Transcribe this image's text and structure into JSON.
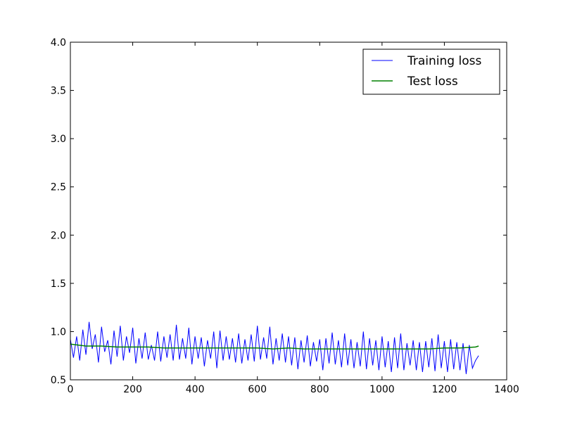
{
  "chart_data": {
    "type": "line",
    "xlim": [
      0,
      1400
    ],
    "ylim": [
      0.5,
      4.0
    ],
    "x_ticks": [
      0,
      200,
      400,
      600,
      800,
      1000,
      1200,
      1400
    ],
    "y_ticks": [
      0.5,
      1.0,
      1.5,
      2.0,
      2.5,
      3.0,
      3.5,
      4.0
    ],
    "x_tick_labels": [
      "0",
      "200",
      "400",
      "600",
      "800",
      "1000",
      "1200",
      "1400"
    ],
    "y_tick_labels": [
      "0.5",
      "1.0",
      "1.5",
      "2.0",
      "2.5",
      "3.0",
      "3.5",
      "4.0"
    ],
    "legend_position": "top-right",
    "legend_labels": [
      "Training loss",
      "Test loss"
    ],
    "series": [
      {
        "name": "Training loss",
        "color": "#0000ff",
        "x": [
          0,
          10,
          20,
          30,
          40,
          50,
          60,
          70,
          80,
          90,
          100,
          110,
          120,
          130,
          140,
          150,
          160,
          170,
          180,
          190,
          200,
          210,
          220,
          230,
          240,
          250,
          260,
          270,
          280,
          290,
          300,
          310,
          320,
          330,
          340,
          350,
          360,
          370,
          380,
          390,
          400,
          410,
          420,
          430,
          440,
          450,
          460,
          470,
          480,
          490,
          500,
          510,
          520,
          530,
          540,
          550,
          560,
          570,
          580,
          590,
          600,
          610,
          620,
          630,
          640,
          650,
          660,
          670,
          680,
          690,
          700,
          710,
          720,
          730,
          740,
          750,
          760,
          770,
          780,
          790,
          800,
          810,
          820,
          830,
          840,
          850,
          860,
          870,
          880,
          890,
          900,
          910,
          920,
          930,
          940,
          950,
          960,
          970,
          980,
          990,
          1000,
          1010,
          1020,
          1030,
          1040,
          1050,
          1060,
          1070,
          1080,
          1090,
          1100,
          1110,
          1120,
          1130,
          1140,
          1150,
          1160,
          1170,
          1180,
          1190,
          1200,
          1210,
          1220,
          1230,
          1240,
          1250,
          1260,
          1270,
          1280,
          1290,
          1300,
          1310
        ],
        "y": [
          0.92,
          0.73,
          0.95,
          0.7,
          1.02,
          0.76,
          1.1,
          0.82,
          0.97,
          0.68,
          1.05,
          0.79,
          0.91,
          0.66,
          1.01,
          0.74,
          1.06,
          0.7,
          0.95,
          0.78,
          1.04,
          0.67,
          0.93,
          0.72,
          0.99,
          0.71,
          0.86,
          0.7,
          1.0,
          0.69,
          0.95,
          0.73,
          0.97,
          0.7,
          1.07,
          0.71,
          0.93,
          0.72,
          1.04,
          0.66,
          0.95,
          0.72,
          0.94,
          0.64,
          0.91,
          0.72,
          1.0,
          0.62,
          1.01,
          0.7,
          0.95,
          0.71,
          0.93,
          0.68,
          0.98,
          0.67,
          0.92,
          0.7,
          0.97,
          0.69,
          1.06,
          0.71,
          0.94,
          0.72,
          1.05,
          0.66,
          0.93,
          0.7,
          0.98,
          0.68,
          0.95,
          0.65,
          0.94,
          0.61,
          0.91,
          0.68,
          0.96,
          0.64,
          0.89,
          0.69,
          0.92,
          0.6,
          0.93,
          0.67,
          0.99,
          0.66,
          0.91,
          0.63,
          0.98,
          0.65,
          0.92,
          0.62,
          0.89,
          0.64,
          1.0,
          0.61,
          0.93,
          0.65,
          0.91,
          0.6,
          0.95,
          0.63,
          0.9,
          0.58,
          0.94,
          0.62,
          0.98,
          0.6,
          0.88,
          0.65,
          0.91,
          0.6,
          0.89,
          0.58,
          0.9,
          0.63,
          0.93,
          0.59,
          0.97,
          0.62,
          0.9,
          0.58,
          0.92,
          0.61,
          0.89,
          0.6,
          0.88,
          0.56,
          0.86,
          0.62,
          0.7,
          0.75
        ],
        "note_noise": "high-frequency fluctuation around ~0.8"
      },
      {
        "name": "Test loss",
        "color": "#008000",
        "x": [
          0,
          50,
          100,
          150,
          200,
          250,
          300,
          350,
          400,
          450,
          500,
          550,
          600,
          650,
          700,
          750,
          800,
          850,
          900,
          950,
          1000,
          1050,
          1100,
          1150,
          1200,
          1250,
          1300,
          1310
        ],
        "y": [
          0.87,
          0.85,
          0.85,
          0.84,
          0.84,
          0.84,
          0.83,
          0.83,
          0.83,
          0.83,
          0.83,
          0.83,
          0.83,
          0.82,
          0.83,
          0.82,
          0.82,
          0.82,
          0.82,
          0.82,
          0.82,
          0.82,
          0.82,
          0.82,
          0.83,
          0.83,
          0.84,
          0.85
        ]
      }
    ]
  }
}
